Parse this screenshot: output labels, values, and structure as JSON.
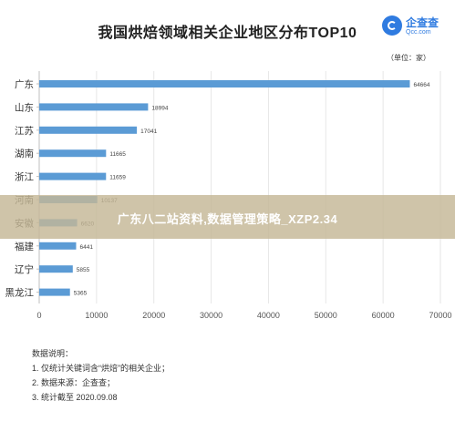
{
  "logo": {
    "name": "企查查",
    "site": "Qcc.com"
  },
  "notes": {
    "heading": "数据说明：",
    "lines": [
      "1. 仅统计关键词含“烘焙”的相关企业；",
      "2. 数据来源：企查查；",
      "3. 统计截至 2020.09.08"
    ]
  },
  "banner": {
    "text": "广东八二站资料,数据管理策略_XZP2.34"
  },
  "colors": {
    "bar": "#5b9bd5",
    "axis": "#bfbfbf",
    "banner": "#c4b796"
  },
  "chart_data": {
    "type": "bar",
    "orientation": "horizontal",
    "title": "我国烘焙领域相关企业地区分布TOP10",
    "unit": "（单位：家）",
    "categories": [
      "广东",
      "山东",
      "江苏",
      "湖南",
      "浙江",
      "河南",
      "安徽",
      "福建",
      "辽宁",
      "黑龙江"
    ],
    "values": [
      64664,
      18994,
      17041,
      11665,
      11659,
      10137,
      6620,
      6441,
      5855,
      5365
    ],
    "value_labels": [
      "64664",
      "18994",
      "17041",
      "11665",
      "11659",
      "10137",
      "6620",
      "6441",
      "5855",
      "5365"
    ],
    "xlim": [
      0,
      70000
    ],
    "xticks": [
      0,
      10000,
      20000,
      30000,
      40000,
      50000,
      60000,
      70000
    ],
    "xtick_labels": [
      "0",
      "10000",
      "20000",
      "30000",
      "40000",
      "50000",
      "60000",
      "70000"
    ],
    "grid": true,
    "legend": "none"
  }
}
